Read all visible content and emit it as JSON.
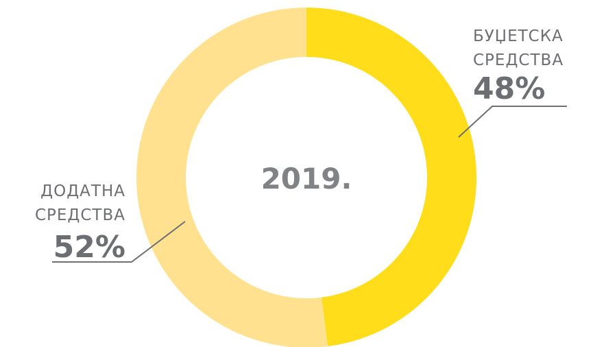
{
  "chart_data": {
    "type": "pie",
    "center_label": "2019.",
    "slices": [
      {
        "label_line1": "БУЏЕТСКА",
        "label_line2": "СРЕДСТВА",
        "percent_label": "48%",
        "value": 48,
        "color": "#ffdd1a"
      },
      {
        "label_line1": "ДОДАТНА",
        "label_line2": "СРЕДСТВА",
        "percent_label": "52%",
        "value": 52,
        "color": "#ffe18f"
      }
    ],
    "label_color": "#6d6e71",
    "center_color": "#808285"
  }
}
